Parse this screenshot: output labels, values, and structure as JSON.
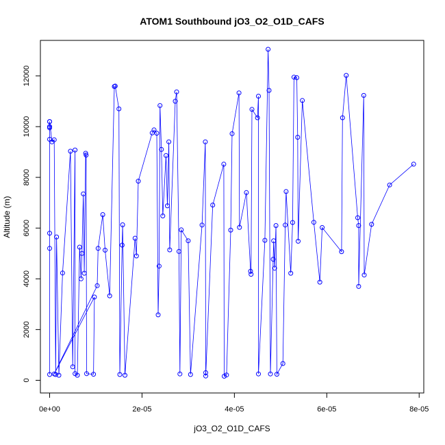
{
  "chart_data": {
    "type": "line",
    "title": "ATOM1 Southbound jO3_O2_O1D_CAFS",
    "xlabel": "jO3_O2_O1D_CAFS",
    "ylabel": "Altitude (m)",
    "xlim": [
      -2e-06,
      8.1e-05
    ],
    "ylim": [
      -500,
      13400
    ],
    "xticks": [
      0,
      2e-05,
      4e-05,
      6e-05,
      8e-05
    ],
    "xtick_labels": [
      "0e+00",
      "2e-05",
      "4e-05",
      "6e-05",
      "8e-05"
    ],
    "yticks": [
      0,
      2000,
      4000,
      6000,
      8000,
      10000,
      12000
    ],
    "ytick_labels": [
      "0",
      "2000",
      "4000",
      "6000",
      "8000",
      "10000",
      "12000"
    ],
    "grid": false,
    "series": [
      {
        "color": "#0000ff",
        "marker": "open-circle",
        "points": [
          [
            0.0,
            230
          ],
          [
            0.0,
            5200
          ],
          [
            0.0,
            5800
          ],
          [
            0.0,
            9500
          ],
          [
            0.0,
            9950
          ],
          [
            0.0,
            10000
          ],
          [
            0.0,
            10200
          ],
          [
            0.0,
            10000
          ],
          [
            0.0,
            10200
          ],
          [
            5e-07,
            9400
          ],
          [
            1e-06,
            9480
          ],
          [
            1.3e-06,
            230
          ],
          [
            1.5e-06,
            5650
          ],
          [
            2e-06,
            200
          ],
          [
            2.8e-06,
            4230
          ],
          [
            4.5e-06,
            9030
          ],
          [
            5e-06,
            530
          ],
          [
            5.5e-06,
            9080
          ],
          [
            5.5e-06,
            260
          ],
          [
            6e-06,
            200
          ],
          [
            6.5e-06,
            5250
          ],
          [
            6.8e-06,
            4000
          ],
          [
            7e-06,
            5000
          ],
          [
            7.3e-06,
            7350
          ],
          [
            7.5e-06,
            4220
          ],
          [
            7.8e-06,
            8950
          ],
          [
            7.9e-06,
            8880
          ],
          [
            8e-06,
            260
          ],
          [
            9.5e-06,
            240
          ],
          [
            9.7e-06,
            3280
          ],
          [
            1e-06,
            250
          ],
          [
            1.03e-05,
            3730
          ],
          [
            1.05e-05,
            5200
          ],
          [
            1.15e-05,
            6530
          ],
          [
            1.2e-05,
            5130
          ],
          [
            1.3e-05,
            3330
          ],
          [
            1.4e-05,
            11580
          ],
          [
            1.42e-05,
            11600
          ],
          [
            1.5e-05,
            10700
          ],
          [
            1.52e-05,
            230
          ],
          [
            1.57e-05,
            5330
          ],
          [
            1.58e-05,
            6130
          ],
          [
            1.63e-05,
            200
          ],
          [
            1.85e-05,
            5600
          ],
          [
            1.88e-05,
            4900
          ],
          [
            1.92e-05,
            7850
          ],
          [
            2.22e-05,
            9750
          ],
          [
            2.26e-05,
            9870
          ],
          [
            2.32e-05,
            9740
          ],
          [
            2.35e-05,
            2580
          ],
          [
            2.37e-05,
            4500
          ],
          [
            2.39e-05,
            10830
          ],
          [
            2.42e-05,
            9100
          ],
          [
            2.45e-05,
            6480
          ],
          [
            2.52e-05,
            8860
          ],
          [
            2.55e-05,
            6880
          ],
          [
            2.58e-05,
            9400
          ],
          [
            2.6e-05,
            5140
          ],
          [
            2.72e-05,
            11000
          ],
          [
            2.75e-05,
            11370
          ],
          [
            2.8e-05,
            5080
          ],
          [
            2.82e-05,
            250
          ],
          [
            2.85e-05,
            5930
          ],
          [
            3e-05,
            5500
          ],
          [
            3.05e-05,
            230
          ],
          [
            3.3e-05,
            6120
          ],
          [
            3.37e-05,
            9400
          ],
          [
            3.38e-05,
            300
          ],
          [
            3.38e-05,
            170
          ],
          [
            3.53e-05,
            6910
          ],
          [
            3.77e-05,
            8520
          ],
          [
            3.78e-05,
            160
          ],
          [
            3.83e-05,
            210
          ],
          [
            3.92e-05,
            5920
          ],
          [
            3.95e-05,
            9720
          ],
          [
            4.1e-05,
            11330
          ],
          [
            4.11e-05,
            6030
          ],
          [
            4.26e-05,
            7400
          ],
          [
            4.35e-05,
            4300
          ],
          [
            4.36e-05,
            4180
          ],
          [
            4.38e-05,
            10680
          ],
          [
            4.5e-05,
            10350
          ],
          [
            4.52e-05,
            11200
          ],
          [
            4.52e-05,
            250
          ],
          [
            4.66e-05,
            5520
          ],
          [
            4.73e-05,
            13050
          ],
          [
            4.75e-05,
            11430
          ],
          [
            4.78e-05,
            250
          ],
          [
            4.84e-05,
            4770
          ],
          [
            4.85e-05,
            5500
          ],
          [
            4.87e-05,
            4420
          ],
          [
            4.9e-05,
            6100
          ],
          [
            4.92e-05,
            240
          ],
          [
            5.05e-05,
            660
          ],
          [
            5.1e-05,
            6120
          ],
          [
            5.12e-05,
            7440
          ],
          [
            5.22e-05,
            4220
          ],
          [
            5.26e-05,
            6220
          ],
          [
            5.29e-05,
            11950
          ],
          [
            5.35e-05,
            11930
          ],
          [
            5.37e-05,
            9580
          ],
          [
            5.38e-05,
            5480
          ],
          [
            5.47e-05,
            11030
          ],
          [
            5.72e-05,
            6230
          ],
          [
            5.85e-05,
            3870
          ],
          [
            5.9e-05,
            6020
          ],
          [
            6.32e-05,
            5070
          ],
          [
            6.34e-05,
            10350
          ],
          [
            6.42e-05,
            12020
          ],
          [
            6.67e-05,
            6410
          ],
          [
            6.69e-05,
            6100
          ],
          [
            6.69e-05,
            3700
          ],
          [
            6.8e-05,
            11230
          ],
          [
            6.81e-05,
            4150
          ],
          [
            6.97e-05,
            6150
          ],
          [
            7.36e-05,
            7700
          ],
          [
            7.88e-05,
            8520
          ]
        ]
      }
    ]
  }
}
